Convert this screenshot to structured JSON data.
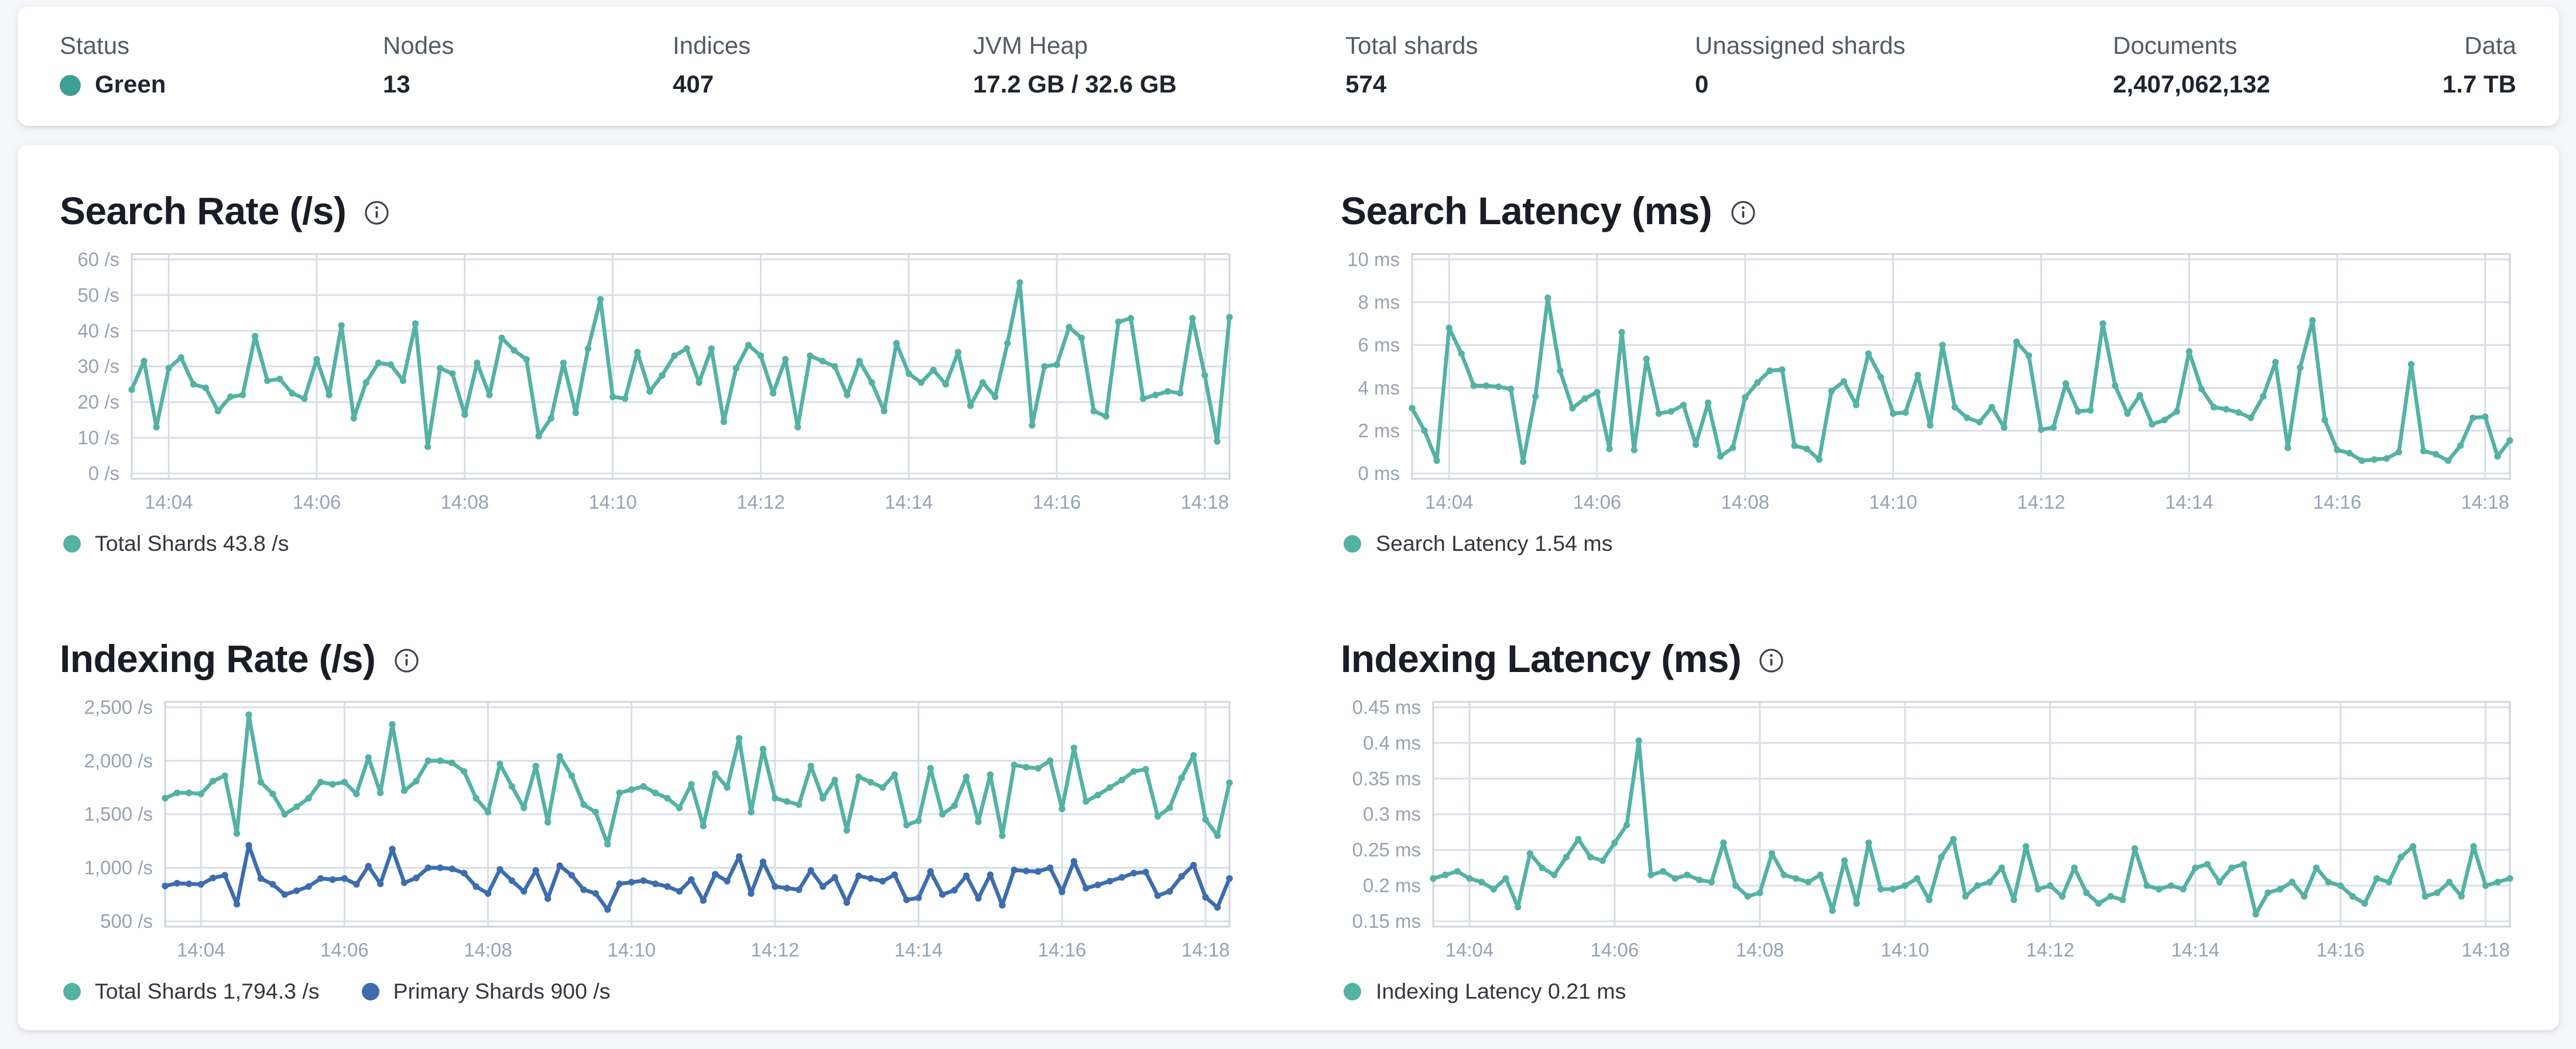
{
  "header": {
    "stats": [
      {
        "label": "Status",
        "value": "Green",
        "dot": true
      },
      {
        "label": "Nodes",
        "value": "13"
      },
      {
        "label": "Indices",
        "value": "407"
      },
      {
        "label": "JVM Heap",
        "value": "17.2 GB / 32.6 GB"
      },
      {
        "label": "Total shards",
        "value": "574"
      },
      {
        "label": "Unassigned shards",
        "value": "0"
      },
      {
        "label": "Documents",
        "value": "2,407,062,132"
      },
      {
        "label": "Data",
        "value": "1.7 TB"
      }
    ]
  },
  "colors": {
    "teal": "#54b2a4",
    "blue": "#3d6dae",
    "status_green": "#3ea094",
    "grid": "#d9dee6",
    "plot_border": "#cfd5de",
    "axis_text": "#98a2b3"
  },
  "info_icon": "circled-i",
  "chart_data": [
    {
      "type": "line",
      "title": "Search Rate (/s)",
      "x_start": "14:03:30",
      "x_interval_s": 10,
      "x_ticks": [
        {
          "i": 3,
          "label": "14:04"
        },
        {
          "i": 15,
          "label": "14:06"
        },
        {
          "i": 27,
          "label": "14:08"
        },
        {
          "i": 39,
          "label": "14:10"
        },
        {
          "i": 51,
          "label": "14:12"
        },
        {
          "i": 63,
          "label": "14:14"
        },
        {
          "i": 75,
          "label": "14:16"
        },
        {
          "i": 87,
          "label": "14:18"
        }
      ],
      "y_ticks": [
        {
          "v": 0,
          "label": "0 /s"
        },
        {
          "v": 10,
          "label": "10 /s"
        },
        {
          "v": 20,
          "label": "20 /s"
        },
        {
          "v": 30,
          "label": "30 /s"
        },
        {
          "v": 40,
          "label": "40 /s"
        },
        {
          "v": 50,
          "label": "50 /s"
        },
        {
          "v": 60,
          "label": "60 /s"
        }
      ],
      "ylim": [
        -1.5,
        61.5
      ],
      "series": [
        {
          "name": "Total Shards",
          "color_key": "teal",
          "legend": "Total Shards 43.8 /s",
          "values": [
            23.5,
            31.5,
            13,
            29.5,
            32.5,
            25,
            24,
            17.5,
            21.5,
            22,
            38.5,
            26,
            26.5,
            22.5,
            21,
            32,
            22,
            41.5,
            15.5,
            25.5,
            31,
            30.5,
            26,
            42,
            7.5,
            29.5,
            28,
            16.5,
            31,
            22,
            38,
            34.5,
            32,
            10.5,
            15.5,
            31,
            17,
            35,
            48.8,
            21.5,
            21,
            34,
            23,
            27.5,
            33,
            35,
            25.5,
            35,
            14.5,
            29.5,
            36,
            33,
            22.5,
            32,
            13,
            33,
            31.5,
            30,
            22,
            31.5,
            25.5,
            17.5,
            36.5,
            28,
            25.5,
            29,
            25,
            34,
            19,
            25.5,
            21.5,
            36.5,
            53.5,
            13.5,
            30,
            30.5,
            41,
            38,
            17.5,
            16,
            42.5,
            43.5,
            21,
            22,
            23,
            22.5,
            43.5,
            27.5,
            9,
            43.8
          ]
        }
      ]
    },
    {
      "type": "line",
      "title": "Search Latency (ms)",
      "x_start": "14:03:30",
      "x_interval_s": 10,
      "x_ticks": [
        {
          "i": 3,
          "label": "14:04"
        },
        {
          "i": 15,
          "label": "14:06"
        },
        {
          "i": 27,
          "label": "14:08"
        },
        {
          "i": 39,
          "label": "14:10"
        },
        {
          "i": 51,
          "label": "14:12"
        },
        {
          "i": 63,
          "label": "14:14"
        },
        {
          "i": 75,
          "label": "14:16"
        },
        {
          "i": 87,
          "label": "14:18"
        }
      ],
      "y_ticks": [
        {
          "v": 0,
          "label": "0 ms"
        },
        {
          "v": 2,
          "label": "2 ms"
        },
        {
          "v": 4,
          "label": "4 ms"
        },
        {
          "v": 6,
          "label": "6 ms"
        },
        {
          "v": 8,
          "label": "8 ms"
        },
        {
          "v": 10,
          "label": "10 ms"
        }
      ],
      "ylim": [
        -0.25,
        10.25
      ],
      "series": [
        {
          "name": "Search Latency",
          "color_key": "teal",
          "legend": "Search Latency 1.54 ms",
          "values": [
            3.05,
            2.0,
            0.6,
            6.8,
            5.6,
            4.1,
            4.1,
            4.05,
            3.95,
            0.55,
            3.6,
            8.2,
            4.8,
            3.05,
            3.5,
            3.8,
            1.15,
            6.6,
            1.1,
            5.35,
            2.8,
            2.9,
            3.2,
            1.35,
            3.3,
            0.8,
            1.2,
            3.55,
            4.25,
            4.8,
            4.85,
            1.3,
            1.15,
            0.65,
            3.85,
            4.3,
            3.2,
            5.6,
            4.5,
            2.8,
            2.85,
            4.6,
            2.25,
            6.0,
            3.1,
            2.6,
            2.4,
            3.1,
            2.15,
            6.15,
            5.5,
            2.05,
            2.15,
            4.2,
            2.9,
            2.95,
            7.0,
            4.1,
            2.8,
            3.65,
            2.3,
            2.5,
            2.9,
            5.7,
            3.95,
            3.1,
            3.0,
            2.85,
            2.6,
            3.6,
            5.2,
            1.2,
            4.95,
            7.15,
            2.5,
            1.1,
            0.95,
            0.6,
            0.65,
            0.7,
            1.0,
            5.1,
            1.05,
            0.9,
            0.6,
            1.3,
            2.6,
            2.65,
            0.8,
            1.54
          ]
        }
      ]
    },
    {
      "type": "line",
      "title": "Indexing Rate (/s)",
      "x_start": "14:03:30",
      "x_interval_s": 10,
      "x_ticks": [
        {
          "i": 3,
          "label": "14:04"
        },
        {
          "i": 15,
          "label": "14:06"
        },
        {
          "i": 27,
          "label": "14:08"
        },
        {
          "i": 39,
          "label": "14:10"
        },
        {
          "i": 51,
          "label": "14:12"
        },
        {
          "i": 63,
          "label": "14:14"
        },
        {
          "i": 75,
          "label": "14:16"
        },
        {
          "i": 87,
          "label": "14:18"
        }
      ],
      "y_ticks": [
        {
          "v": 500,
          "label": "500 /s"
        },
        {
          "v": 1000,
          "label": "1,000 /s"
        },
        {
          "v": 1500,
          "label": "1,500 /s"
        },
        {
          "v": 2000,
          "label": "2,000 /s"
        },
        {
          "v": 2500,
          "label": "2,500 /s"
        }
      ],
      "ylim": [
        450,
        2550
      ],
      "series": [
        {
          "name": "Total Shards",
          "color_key": "teal",
          "legend": "Total Shards 1,794.3 /s",
          "values": [
            1650,
            1700,
            1700,
            1690,
            1810,
            1860,
            1320,
            2430,
            1800,
            1690,
            1500,
            1570,
            1650,
            1800,
            1780,
            1800,
            1690,
            2030,
            1700,
            2340,
            1720,
            1810,
            2000,
            2000,
            1980,
            1900,
            1650,
            1520,
            1970,
            1760,
            1560,
            1950,
            1425,
            2040,
            1860,
            1590,
            1520,
            1220,
            1700,
            1730,
            1760,
            1700,
            1650,
            1560,
            1780,
            1390,
            1880,
            1750,
            2210,
            1520,
            2110,
            1650,
            1620,
            1590,
            1950,
            1650,
            1820,
            1350,
            1850,
            1800,
            1750,
            1870,
            1400,
            1440,
            1930,
            1500,
            1580,
            1850,
            1430,
            1870,
            1300,
            1960,
            1940,
            1930,
            2000,
            1550,
            2120,
            1620,
            1680,
            1750,
            1820,
            1900,
            1920,
            1480,
            1560,
            1840,
            2050,
            1450,
            1300,
            1794.3
          ]
        },
        {
          "name": "Primary Shards",
          "color_key": "blue",
          "legend": "Primary Shards 900 /s",
          "values": [
            830,
            855,
            850,
            845,
            905,
            930,
            660,
            1210,
            900,
            845,
            750,
            785,
            825,
            900,
            890,
            900,
            845,
            1015,
            850,
            1175,
            860,
            905,
            1000,
            1000,
            990,
            950,
            825,
            760,
            985,
            880,
            780,
            975,
            712,
            1020,
            930,
            795,
            760,
            610,
            850,
            865,
            880,
            850,
            825,
            780,
            890,
            695,
            940,
            875,
            1105,
            760,
            1055,
            825,
            810,
            795,
            975,
            825,
            910,
            675,
            925,
            900,
            875,
            935,
            700,
            720,
            965,
            750,
            790,
            925,
            715,
            935,
            650,
            980,
            970,
            965,
            1000,
            775,
            1060,
            810,
            840,
            875,
            910,
            950,
            960,
            740,
            780,
            920,
            1025,
            725,
            630,
            900
          ]
        }
      ]
    },
    {
      "type": "line",
      "title": "Indexing Latency (ms)",
      "x_start": "14:03:30",
      "x_interval_s": 10,
      "x_ticks": [
        {
          "i": 3,
          "label": "14:04"
        },
        {
          "i": 15,
          "label": "14:06"
        },
        {
          "i": 27,
          "label": "14:08"
        },
        {
          "i": 39,
          "label": "14:10"
        },
        {
          "i": 51,
          "label": "14:12"
        },
        {
          "i": 63,
          "label": "14:14"
        },
        {
          "i": 75,
          "label": "14:16"
        },
        {
          "i": 87,
          "label": "14:18"
        }
      ],
      "y_ticks": [
        {
          "v": 0.15,
          "label": "0.15 ms"
        },
        {
          "v": 0.2,
          "label": "0.2 ms"
        },
        {
          "v": 0.25,
          "label": "0.25 ms"
        },
        {
          "v": 0.3,
          "label": "0.3 ms"
        },
        {
          "v": 0.35,
          "label": "0.35 ms"
        },
        {
          "v": 0.4,
          "label": "0.4 ms"
        },
        {
          "v": 0.45,
          "label": "0.45 ms"
        }
      ],
      "ylim": [
        0.1425,
        0.4575
      ],
      "series": [
        {
          "name": "Indexing Latency",
          "color_key": "teal",
          "legend": "Indexing Latency 0.21 ms",
          "values": [
            0.21,
            0.215,
            0.22,
            0.21,
            0.205,
            0.195,
            0.21,
            0.17,
            0.245,
            0.225,
            0.215,
            0.24,
            0.265,
            0.24,
            0.235,
            0.26,
            0.285,
            0.403,
            0.215,
            0.22,
            0.21,
            0.215,
            0.208,
            0.205,
            0.26,
            0.2,
            0.185,
            0.19,
            0.245,
            0.215,
            0.21,
            0.205,
            0.215,
            0.165,
            0.235,
            0.175,
            0.26,
            0.195,
            0.195,
            0.2,
            0.21,
            0.18,
            0.24,
            0.265,
            0.185,
            0.2,
            0.205,
            0.225,
            0.18,
            0.255,
            0.195,
            0.2,
            0.185,
            0.225,
            0.19,
            0.175,
            0.185,
            0.18,
            0.252,
            0.2,
            0.195,
            0.2,
            0.195,
            0.225,
            0.23,
            0.205,
            0.225,
            0.23,
            0.16,
            0.19,
            0.195,
            0.205,
            0.185,
            0.225,
            0.205,
            0.2,
            0.185,
            0.175,
            0.21,
            0.205,
            0.24,
            0.255,
            0.185,
            0.19,
            0.205,
            0.185,
            0.255,
            0.2,
            0.205,
            0.21
          ]
        }
      ]
    }
  ]
}
